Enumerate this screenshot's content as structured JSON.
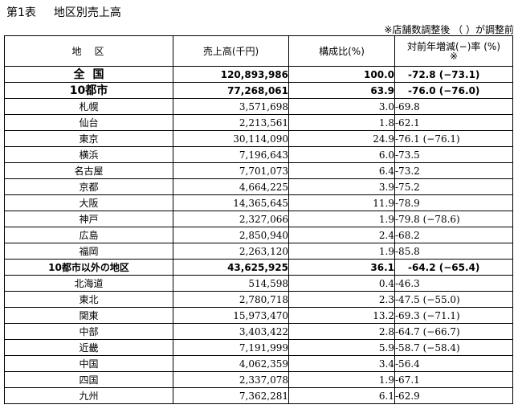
{
  "title": {
    "table_no": "第1表",
    "caption": "地区別売上高"
  },
  "note": "※店舗数調整後 （ ）が調整前",
  "headers": {
    "region": "地　区",
    "sales": "売上高(千円)",
    "ratio": "構成比(%)",
    "rate_line1": "対前年増減(−)率 (%)",
    "rate_line2": "※"
  },
  "rows": [
    {
      "name": "全国",
      "sales": "120,893,986",
      "ratio": "100.0",
      "rate": "-72.8 (−73.1)"
    },
    {
      "name": "10都市",
      "sales": "77,268,061",
      "ratio": "63.9",
      "rate": "-76.0 (−76.0)"
    },
    {
      "name": "札幌",
      "sales": "3,571,698",
      "ratio": "3.0",
      "rate": "-69.8"
    },
    {
      "name": "仙台",
      "sales": "2,213,561",
      "ratio": "1.8",
      "rate": "-62.1"
    },
    {
      "name": "東京",
      "sales": "30,114,090",
      "ratio": "24.9",
      "rate": "-76.1 (−76.1)"
    },
    {
      "name": "横浜",
      "sales": "7,196,643",
      "ratio": "6.0",
      "rate": "-73.5"
    },
    {
      "name": "名古屋",
      "sales": "7,701,073",
      "ratio": "6.4",
      "rate": "-73.2"
    },
    {
      "name": "京都",
      "sales": "4,664,225",
      "ratio": "3.9",
      "rate": "-75.2"
    },
    {
      "name": "大阪",
      "sales": "14,365,645",
      "ratio": "11.9",
      "rate": "-78.9"
    },
    {
      "name": "神戸",
      "sales": "2,327,066",
      "ratio": "1.9",
      "rate": "-79.8 (−78.6)"
    },
    {
      "name": "広島",
      "sales": "2,850,940",
      "ratio": "2.4",
      "rate": "-68.2"
    },
    {
      "name": "福岡",
      "sales": "2,263,120",
      "ratio": "1.9",
      "rate": "-85.8"
    },
    {
      "name": "10都市以外の地区",
      "sales": "43,625,925",
      "ratio": "36.1",
      "rate": "-64.2 (−65.4)"
    },
    {
      "name": "北海道",
      "sales": "514,598",
      "ratio": "0.4",
      "rate": "-46.3"
    },
    {
      "name": "東北",
      "sales": "2,780,718",
      "ratio": "2.3",
      "rate": "-47.5 (−55.0)"
    },
    {
      "name": "関東",
      "sales": "15,973,470",
      "ratio": "13.2",
      "rate": "-69.3 (−71.1)"
    },
    {
      "name": "中部",
      "sales": "3,403,422",
      "ratio": "2.8",
      "rate": "-64.7 (−66.7)"
    },
    {
      "name": "近畿",
      "sales": "7,191,999",
      "ratio": "5.9",
      "rate": "-58.7 (−58.4)"
    },
    {
      "name": "中国",
      "sales": "4,062,359",
      "ratio": "3.4",
      "rate": "-56.4"
    },
    {
      "name": "四国",
      "sales": "2,337,078",
      "ratio": "1.9",
      "rate": "-67.1"
    },
    {
      "name": "九州",
      "sales": "7,362,281",
      "ratio": "6.1",
      "rate": "-62.9"
    }
  ]
}
